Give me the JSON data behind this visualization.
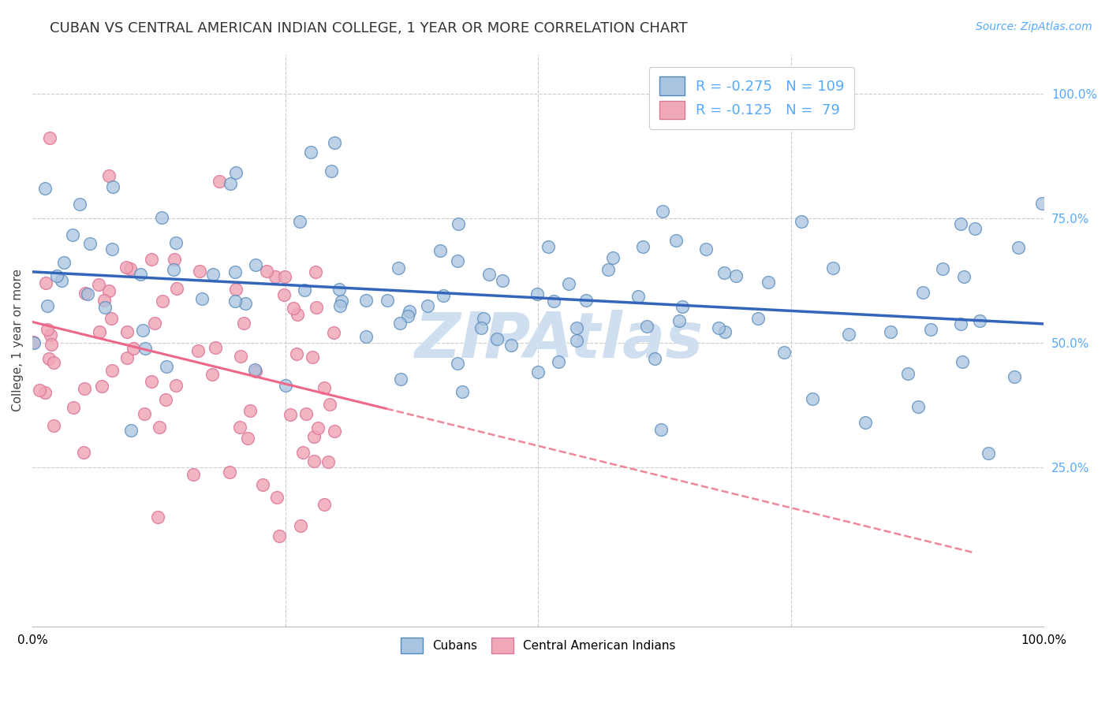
{
  "title": "CUBAN VS CENTRAL AMERICAN INDIAN COLLEGE, 1 YEAR OR MORE CORRELATION CHART",
  "source": "Source: ZipAtlas.com",
  "ylabel": "College, 1 year or more",
  "xlim": [
    0,
    1
  ],
  "ylim": [
    -0.07,
    1.08
  ],
  "cuban_R": -0.275,
  "cuban_N": 109,
  "central_R": -0.125,
  "central_N": 79,
  "blue_scatter_color": "#A8C4E0",
  "blue_edge_color": "#5588BB",
  "pink_scatter_color": "#F0A8B8",
  "pink_edge_color": "#DD7799",
  "blue_line_color": "#3366BB",
  "pink_solid_color": "#EE6688",
  "pink_dash_color": "#EE8899",
  "title_fontsize": 13,
  "source_fontsize": 10,
  "label_fontsize": 11,
  "tick_fontsize": 11,
  "legend_fontsize": 13,
  "watermark_color": "#D0DFF0",
  "background_color": "#FFFFFF",
  "grid_color": "#CCCCCC",
  "right_tick_color": "#55AAFF"
}
